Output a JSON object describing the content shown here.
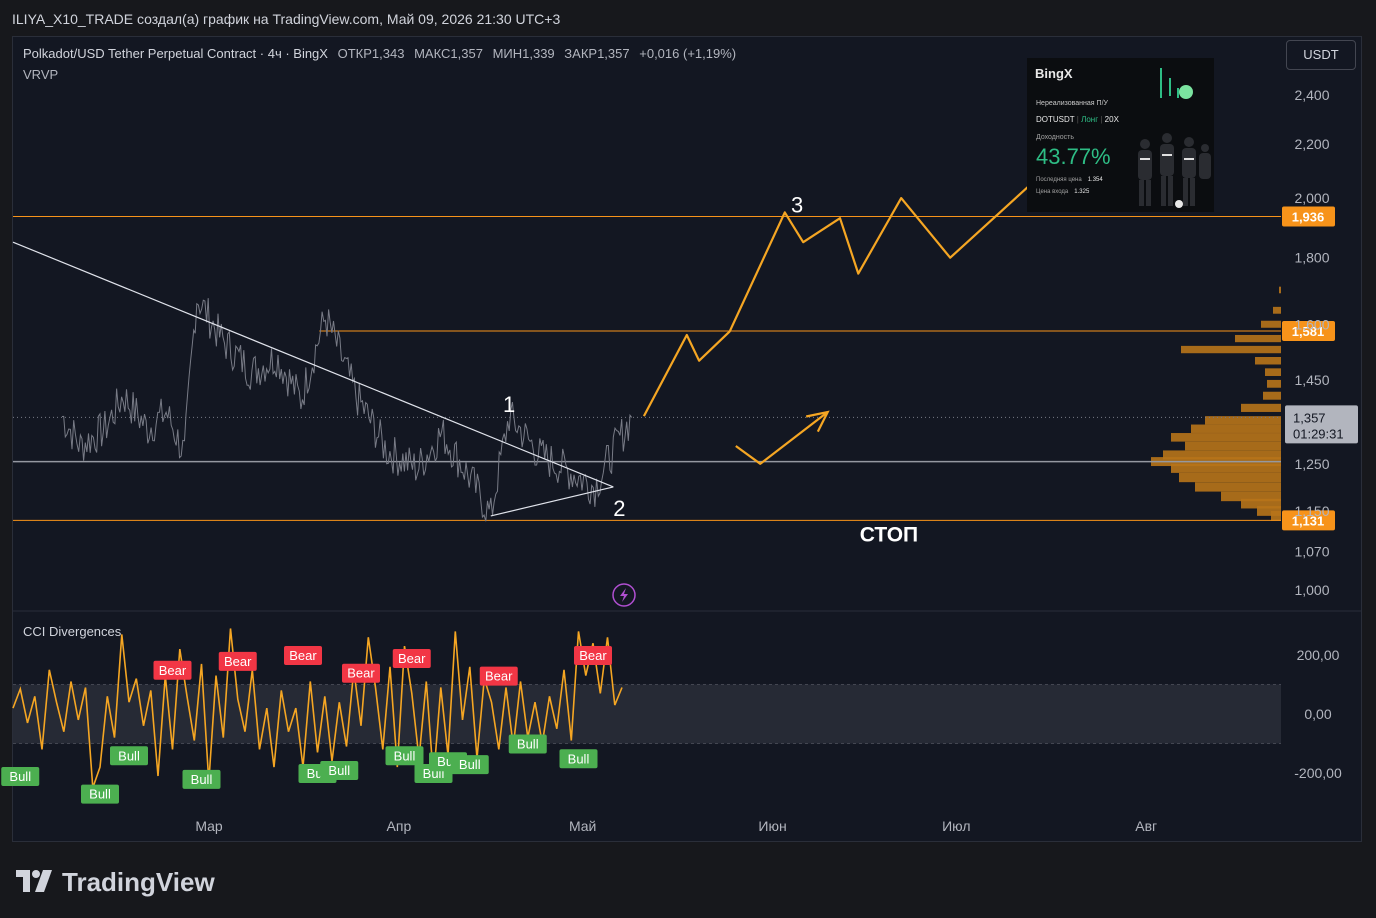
{
  "header": {
    "credit": "ILIYA_X10_TRADE создал(а) график на TradingView.com, Май 09, 2026 21:30 UTC+3"
  },
  "legend": {
    "symbol": "Polkadot/USD Tether Perpetual Contract · 4ч · BingX",
    "open_label": "ОТКР",
    "open": "1,343",
    "high_label": "МАКС",
    "high": "1,357",
    "low_label": "МИН",
    "low": "1,339",
    "close_label": "ЗАКР",
    "close": "1,357",
    "change": "+0,016 (+1,19%)",
    "indicator": "VRVP"
  },
  "currency_button": "USDT",
  "widget": {
    "brand": "BingX",
    "unrealized": "Нереализованная П/У",
    "pair": "DOTUSDT",
    "side": "Лонг",
    "leverage": "20X",
    "yield_label": "Доходность",
    "yield": "43.77%",
    "last_price_label": "Последняя цена",
    "last_price": "1.354",
    "entry_label": "Цена входа",
    "entry": "1.325"
  },
  "annotations": {
    "wave1": "1",
    "wave2": "2",
    "wave3": "3",
    "stop": "СТОП"
  },
  "cci_title": "CCI Divergences",
  "branding": "TradingView",
  "colors": {
    "background": "#131722",
    "price_line": "#787b86",
    "level": "#f7931a",
    "projection": "#f5a623",
    "cci": "#f5a623",
    "bear": "#f23645",
    "bull": "#4caf50",
    "volume_profile": "#b8741a"
  },
  "chart_data": [
    {
      "type": "line",
      "title": "Polkadot/USD Tether Perpetual Contract · 4ч · BingX",
      "x_axis_labels": [
        "Мар",
        "Апр",
        "Май",
        "Июн",
        "Июл",
        "Авг"
      ],
      "y_axis_labels": [
        "2,400",
        "2,200",
        "2,000",
        "1,800",
        "1,600",
        "1,450",
        "1,250",
        "1,150",
        "1,070",
        "1,000"
      ],
      "y_scale": "log",
      "ylim": [
        0.97,
        2.55
      ],
      "last_price": 1.357,
      "last_price_timer": "01:29:31",
      "price_path": [
        [
          "2026-02-05",
          1.36
        ],
        [
          "2026-02-08",
          1.29
        ],
        [
          "2026-02-12",
          1.33
        ],
        [
          "2026-02-15",
          1.41
        ],
        [
          "2026-02-19",
          1.33
        ],
        [
          "2026-02-22",
          1.37
        ],
        [
          "2026-02-25",
          1.27
        ],
        [
          "2026-02-27",
          1.68
        ],
        [
          "2026-03-03",
          1.56
        ],
        [
          "2026-03-08",
          1.47
        ],
        [
          "2026-03-12",
          1.51
        ],
        [
          "2026-03-16",
          1.4
        ],
        [
          "2026-03-20",
          1.62
        ],
        [
          "2026-03-25",
          1.41
        ],
        [
          "2026-03-30",
          1.28
        ],
        [
          "2026-04-04",
          1.24
        ],
        [
          "2026-04-08",
          1.32
        ],
        [
          "2026-04-13",
          1.21
        ],
        [
          "2026-04-16",
          1.14
        ],
        [
          "2026-04-19",
          1.36
        ],
        [
          "2026-04-24",
          1.27
        ],
        [
          "2026-04-28",
          1.24
        ],
        [
          "2026-05-03",
          1.2
        ],
        [
          "2026-05-06",
          1.28
        ],
        [
          "2026-05-09",
          1.357
        ]
      ],
      "levels": [
        {
          "value": 1.936,
          "label": "1,936"
        },
        {
          "value": 1.581,
          "label": "1,581"
        },
        {
          "value": 1.131,
          "label": "1,131"
        },
        {
          "value": 1.255,
          "label": ""
        }
      ],
      "trendlines": [
        [
          [
            "2026-01-28",
            1.85
          ],
          [
            "2026-05-06",
            1.2
          ]
        ],
        [
          [
            "2026-04-16",
            1.14
          ],
          [
            "2026-05-06",
            1.2
          ]
        ]
      ],
      "projection": [
        [
          "2026-05-11",
          1.36
        ],
        [
          "2026-05-18",
          1.57
        ],
        [
          "2026-05-20",
          1.5
        ],
        [
          "2026-05-25",
          1.58
        ],
        [
          "2026-06-03",
          1.95
        ],
        [
          "2026-06-06",
          1.85
        ],
        [
          "2026-06-12",
          1.93
        ],
        [
          "2026-06-15",
          1.75
        ],
        [
          "2026-06-22",
          2.0
        ],
        [
          "2026-06-30",
          1.8
        ],
        [
          "2026-07-30",
          2.42
        ]
      ],
      "alternate_projection": [
        [
          "2026-05-26",
          1.29
        ],
        [
          "2026-05-30",
          1.25
        ],
        [
          "2026-06-10",
          1.37
        ]
      ],
      "labels": [
        {
          "text": "1",
          "x": "2026-04-19",
          "y": 1.37
        },
        {
          "text": "2",
          "x": "2026-05-07",
          "y": 1.14
        },
        {
          "text": "3",
          "x": "2026-06-05",
          "y": 1.95
        },
        {
          "text": "СТОП",
          "x": "2026-06-20",
          "y": 1.09
        }
      ]
    },
    {
      "type": "line",
      "title": "CCI Divergences",
      "y_axis_labels": [
        "200,00",
        "0,00",
        "-200,00"
      ],
      "ylim": [
        -280,
        350
      ],
      "band": [
        -100,
        100
      ],
      "values": [
        [
          0,
          20
        ],
        [
          1,
          85
        ],
        [
          2,
          -30
        ],
        [
          3,
          60
        ],
        [
          4,
          -120
        ],
        [
          5,
          150
        ],
        [
          6,
          40
        ],
        [
          7,
          -60
        ],
        [
          8,
          110
        ],
        [
          9,
          -20
        ],
        [
          10,
          90
        ],
        [
          11,
          -250
        ],
        [
          12,
          -180
        ],
        [
          13,
          60
        ],
        [
          14,
          -80
        ],
        [
          15,
          270
        ],
        [
          16,
          40
        ],
        [
          17,
          120
        ],
        [
          18,
          -40
        ],
        [
          19,
          80
        ],
        [
          20,
          -210
        ],
        [
          21,
          130
        ],
        [
          22,
          -120
        ],
        [
          23,
          220
        ],
        [
          24,
          60
        ],
        [
          25,
          -90
        ],
        [
          26,
          170
        ],
        [
          27,
          -230
        ],
        [
          28,
          130
        ],
        [
          29,
          -80
        ],
        [
          30,
          290
        ],
        [
          31,
          50
        ],
        [
          32,
          -60
        ],
        [
          33,
          150
        ],
        [
          34,
          -120
        ],
        [
          35,
          20
        ],
        [
          36,
          -180
        ],
        [
          37,
          80
        ],
        [
          38,
          -60
        ],
        [
          39,
          20
        ],
        [
          40,
          -180
        ],
        [
          41,
          110
        ],
        [
          42,
          -130
        ],
        [
          43,
          60
        ],
        [
          44,
          -160
        ],
        [
          45,
          40
        ],
        [
          46,
          -110
        ],
        [
          47,
          150
        ],
        [
          48,
          -40
        ],
        [
          49,
          260
        ],
        [
          50,
          90
        ],
        [
          51,
          -120
        ],
        [
          52,
          160
        ],
        [
          53,
          -180
        ],
        [
          54,
          230
        ],
        [
          55,
          70
        ],
        [
          56,
          -150
        ],
        [
          57,
          110
        ],
        [
          58,
          -220
        ],
        [
          59,
          90
        ],
        [
          60,
          -140
        ],
        [
          61,
          280
        ],
        [
          62,
          -20
        ],
        [
          63,
          160
        ],
        [
          64,
          -150
        ],
        [
          65,
          120
        ],
        [
          66,
          40
        ],
        [
          67,
          -120
        ],
        [
          68,
          90
        ],
        [
          69,
          -110
        ],
        [
          70,
          110
        ],
        [
          71,
          -80
        ],
        [
          72,
          40
        ],
        [
          73,
          -100
        ],
        [
          74,
          60
        ],
        [
          75,
          -50
        ],
        [
          76,
          150
        ],
        [
          77,
          -90
        ],
        [
          78,
          280
        ],
        [
          79,
          130
        ],
        [
          80,
          240
        ],
        [
          81,
          70
        ],
        [
          82,
          260
        ],
        [
          83,
          30
        ],
        [
          84,
          90
        ]
      ],
      "markers": [
        {
          "text": "Bear",
          "i": 22,
          "y": 150
        },
        {
          "text": "Bear",
          "i": 31,
          "y": 180
        },
        {
          "text": "Bear",
          "i": 40,
          "y": 200
        },
        {
          "text": "Bear",
          "i": 48,
          "y": 140
        },
        {
          "text": "Bear",
          "i": 55,
          "y": 190
        },
        {
          "text": "Bear",
          "i": 67,
          "y": 130
        },
        {
          "text": "Bear",
          "i": 80,
          "y": 200
        },
        {
          "text": "Bull",
          "i": 1,
          "y": -210
        },
        {
          "text": "Bull",
          "i": 12,
          "y": -270
        },
        {
          "text": "Bull",
          "i": 16,
          "y": -140
        },
        {
          "text": "Bull",
          "i": 26,
          "y": -220
        },
        {
          "text": "Bull",
          "i": 42,
          "y": -200
        },
        {
          "text": "Bull",
          "i": 45,
          "y": -190
        },
        {
          "text": "Bull",
          "i": 54,
          "y": -140
        },
        {
          "text": "Bull",
          "i": 58,
          "y": -200
        },
        {
          "text": "Bull",
          "i": 60,
          "y": -160
        },
        {
          "text": "Bull",
          "i": 63,
          "y": -170
        },
        {
          "text": "Bull",
          "i": 71,
          "y": -100
        },
        {
          "text": "Bull",
          "i": 78,
          "y": -150
        }
      ]
    }
  ]
}
